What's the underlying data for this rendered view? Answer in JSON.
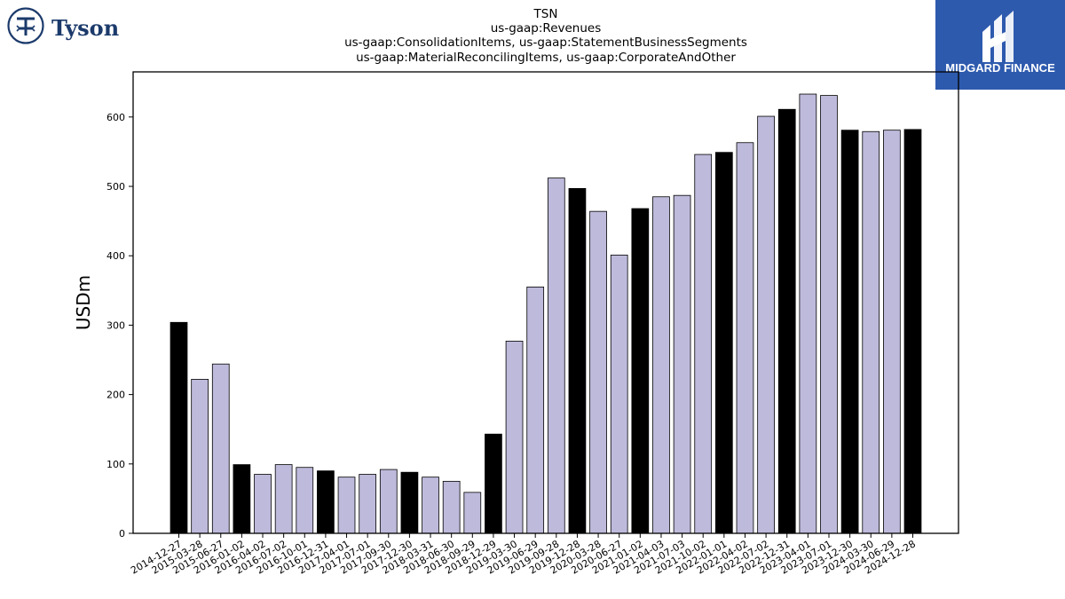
{
  "logos": {
    "left": {
      "name": "Tyson",
      "icon": "tyson-logo-icon",
      "color": "#1b3a6b"
    },
    "right": {
      "name": "MIDGARD FINANCE",
      "icon": "midgard-logo-icon",
      "color": "#2e5aae"
    }
  },
  "chart_data": {
    "type": "bar",
    "title": [
      "TSN",
      "us-gaap:Revenues",
      "us-gaap:ConsolidationItems, us-gaap:StatementBusinessSegments",
      "us-gaap:MaterialReconcilingItems, us-gaap:CorporateAndOther"
    ],
    "xlabel": "",
    "ylabel": "USDm",
    "ylim": [
      0,
      665
    ],
    "yticks": [
      0,
      100,
      200,
      300,
      400,
      500,
      600
    ],
    "grid": false,
    "colors": {
      "annual": "#000000",
      "quarter": "#bebadb",
      "edge": "#000000"
    },
    "categories": [
      "2014-12-27",
      "2015-03-28",
      "2015-06-27",
      "2016-01-02",
      "2016-04-02",
      "2016-07-02",
      "2016-10-01",
      "2016-12-31",
      "2017-04-01",
      "2017-07-01",
      "2017-09-30",
      "2017-12-30",
      "2018-03-31",
      "2018-06-30",
      "2018-09-29",
      "2018-12-29",
      "2019-03-30",
      "2019-06-29",
      "2019-09-28",
      "2019-12-28",
      "2020-03-28",
      "2020-06-27",
      "2021-01-02",
      "2021-04-03",
      "2021-07-03",
      "2021-10-02",
      "2022-01-01",
      "2022-04-02",
      "2022-07-02",
      "2022-12-31",
      "2023-04-01",
      "2023-07-01",
      "2023-12-30",
      "2024-03-30",
      "2024-06-29",
      "2024-12-28"
    ],
    "values": [
      304,
      222,
      244,
      99,
      85,
      99,
      95,
      90,
      81,
      85,
      92,
      88,
      81,
      75,
      59,
      143,
      277,
      355,
      512,
      497,
      464,
      401,
      468,
      485,
      487,
      546,
      549,
      563,
      601,
      611,
      633,
      631,
      581,
      579,
      581,
      582
    ],
    "highlight": [
      true,
      false,
      false,
      true,
      false,
      false,
      false,
      true,
      false,
      false,
      false,
      true,
      false,
      false,
      false,
      true,
      false,
      false,
      false,
      true,
      false,
      false,
      true,
      false,
      false,
      false,
      true,
      false,
      false,
      true,
      false,
      false,
      true,
      false,
      false,
      true
    ]
  }
}
